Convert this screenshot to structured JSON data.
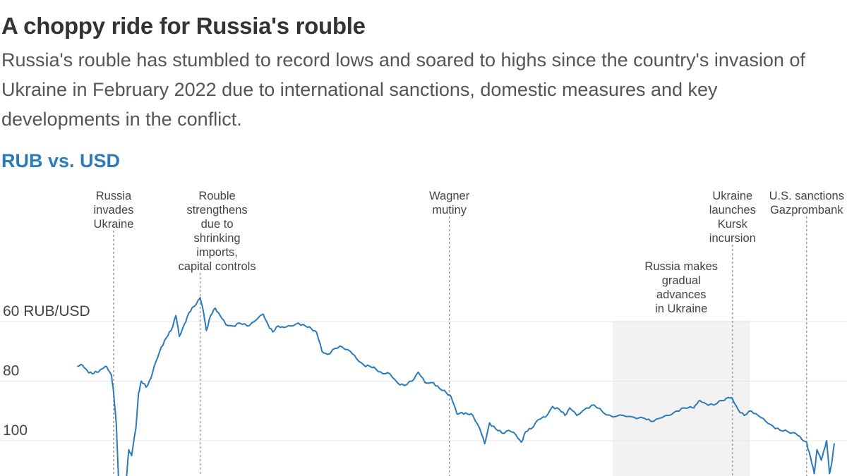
{
  "header": {
    "title": "A choppy ride for Russia's rouble",
    "subtitle": "Russia's rouble has stumbled to record lows and soared to highs since the country's invasion of Ukraine in February 2022 due to international sanctions, domestic measures and key developments in the conflict.",
    "chart_heading": "RUB vs. USD"
  },
  "colors": {
    "line": "#2b7bba",
    "heading": "#2b7bba",
    "grid": "#e6e6e6",
    "shade": "#f2f2f2",
    "event_line": "#999999"
  },
  "chart_data": {
    "type": "line",
    "title": "RUB vs. USD",
    "ylabel": "",
    "y_inverted": true,
    "ylim": [
      45,
      117
    ],
    "yticks": [
      {
        "value": 60,
        "label": "60 RUB/USD"
      },
      {
        "value": 80,
        "label": "80"
      },
      {
        "value": 100,
        "label": "100"
      }
    ],
    "xlim": [
      "2022-01-01",
      "2024-12-31"
    ],
    "grid": true,
    "series": [
      {
        "points": [
          [
            "2022-01-03",
            75.0
          ],
          [
            "2022-01-10",
            74.6
          ],
          [
            "2022-01-17",
            76.5
          ],
          [
            "2022-01-24",
            77.5
          ],
          [
            "2022-01-31",
            77.0
          ],
          [
            "2022-02-07",
            75.9
          ],
          [
            "2022-02-14",
            75.1
          ],
          [
            "2022-02-21",
            78.0
          ],
          [
            "2022-02-24",
            84.0
          ],
          [
            "2022-02-28",
            95.0
          ],
          [
            "2022-03-03",
            112.0
          ],
          [
            "2022-03-07",
            118.0
          ],
          [
            "2022-03-10",
            114.0
          ],
          [
            "2022-03-14",
            114.0
          ],
          [
            "2022-03-18",
            103.0
          ],
          [
            "2022-03-22",
            105.0
          ],
          [
            "2022-03-28",
            96.0
          ],
          [
            "2022-04-01",
            84.0
          ],
          [
            "2022-04-05",
            80.0
          ],
          [
            "2022-04-12",
            82.0
          ],
          [
            "2022-04-19",
            79.0
          ],
          [
            "2022-04-26",
            73.5
          ],
          [
            "2022-05-04",
            68.5
          ],
          [
            "2022-05-11",
            65.5
          ],
          [
            "2022-05-18",
            63.0
          ],
          [
            "2022-05-25",
            58.0
          ],
          [
            "2022-05-30",
            65.0
          ],
          [
            "2022-06-06",
            61.0
          ],
          [
            "2022-06-13",
            57.0
          ],
          [
            "2022-06-20",
            55.0
          ],
          [
            "2022-06-29",
            52.0
          ],
          [
            "2022-07-04",
            57.0
          ],
          [
            "2022-07-08",
            63.0
          ],
          [
            "2022-07-14",
            58.0
          ],
          [
            "2022-07-21",
            55.5
          ],
          [
            "2022-07-28",
            58.0
          ],
          [
            "2022-08-05",
            61.0
          ],
          [
            "2022-08-15",
            61.5
          ],
          [
            "2022-08-25",
            60.5
          ],
          [
            "2022-09-05",
            61.5
          ],
          [
            "2022-09-15",
            60.0
          ],
          [
            "2022-09-28",
            57.5
          ],
          [
            "2022-10-05",
            61.0
          ],
          [
            "2022-10-12",
            63.5
          ],
          [
            "2022-10-20",
            61.5
          ],
          [
            "2022-10-28",
            62.0
          ],
          [
            "2022-11-07",
            61.5
          ],
          [
            "2022-11-18",
            60.5
          ],
          [
            "2022-11-28",
            61.5
          ],
          [
            "2022-12-07",
            62.5
          ],
          [
            "2022-12-14",
            63.5
          ],
          [
            "2022-12-22",
            70.0
          ],
          [
            "2022-12-30",
            71.0
          ],
          [
            "2023-01-10",
            69.0
          ],
          [
            "2023-01-20",
            68.5
          ],
          [
            "2023-02-01",
            70.0
          ],
          [
            "2023-02-10",
            72.5
          ],
          [
            "2023-02-20",
            74.5
          ],
          [
            "2023-03-01",
            75.0
          ],
          [
            "2023-03-10",
            76.0
          ],
          [
            "2023-03-20",
            77.5
          ],
          [
            "2023-03-30",
            77.5
          ],
          [
            "2023-04-10",
            80.5
          ],
          [
            "2023-04-20",
            81.5
          ],
          [
            "2023-05-01",
            80.0
          ],
          [
            "2023-05-10",
            77.0
          ],
          [
            "2023-05-20",
            80.5
          ],
          [
            "2023-06-01",
            80.5
          ],
          [
            "2023-06-10",
            82.5
          ],
          [
            "2023-06-20",
            84.0
          ],
          [
            "2023-06-26",
            85.0
          ],
          [
            "2023-07-05",
            91.0
          ],
          [
            "2023-07-12",
            90.5
          ],
          [
            "2023-07-20",
            91.0
          ],
          [
            "2023-07-28",
            91.5
          ],
          [
            "2023-08-07",
            96.0
          ],
          [
            "2023-08-14",
            101.0
          ],
          [
            "2023-08-21",
            94.0
          ],
          [
            "2023-08-30",
            96.0
          ],
          [
            "2023-09-08",
            97.5
          ],
          [
            "2023-09-18",
            96.5
          ],
          [
            "2023-09-28",
            98.0
          ],
          [
            "2023-10-06",
            100.5
          ],
          [
            "2023-10-12",
            97.0
          ],
          [
            "2023-10-20",
            96.0
          ],
          [
            "2023-10-30",
            93.0
          ],
          [
            "2023-11-10",
            92.0
          ],
          [
            "2023-11-20",
            88.5
          ],
          [
            "2023-11-30",
            89.5
          ],
          [
            "2023-12-08",
            91.5
          ],
          [
            "2023-12-15",
            89.0
          ],
          [
            "2023-12-25",
            91.5
          ],
          [
            "2024-01-08",
            89.0
          ],
          [
            "2024-01-19",
            88.0
          ],
          [
            "2024-02-01",
            90.5
          ],
          [
            "2024-02-15",
            92.0
          ],
          [
            "2024-03-01",
            91.5
          ],
          [
            "2024-03-15",
            92.0
          ],
          [
            "2024-04-01",
            92.5
          ],
          [
            "2024-04-10",
            93.5
          ],
          [
            "2024-04-22",
            92.5
          ],
          [
            "2024-05-06",
            91.5
          ],
          [
            "2024-05-17",
            90.0
          ],
          [
            "2024-05-28",
            89.0
          ],
          [
            "2024-06-10",
            89.0
          ],
          [
            "2024-06-14",
            88.0
          ],
          [
            "2024-06-20",
            86.5
          ],
          [
            "2024-06-28",
            87.5
          ],
          [
            "2024-07-10",
            88.0
          ],
          [
            "2024-07-22",
            86.5
          ],
          [
            "2024-07-31",
            85.5
          ],
          [
            "2024-08-06",
            86.0
          ],
          [
            "2024-08-14",
            89.5
          ],
          [
            "2024-08-23",
            91.5
          ],
          [
            "2024-09-02",
            90.0
          ],
          [
            "2024-09-12",
            91.5
          ],
          [
            "2024-09-23",
            93.5
          ],
          [
            "2024-10-03",
            95.0
          ],
          [
            "2024-10-14",
            96.5
          ],
          [
            "2024-10-25",
            97.0
          ],
          [
            "2024-11-05",
            97.5
          ],
          [
            "2024-11-14",
            99.5
          ],
          [
            "2024-11-21",
            100.5
          ],
          [
            "2024-11-27",
            106.0
          ],
          [
            "2024-12-02",
            111.0
          ],
          [
            "2024-12-06",
            103.0
          ],
          [
            "2024-12-12",
            106.5
          ],
          [
            "2024-12-17",
            102.5
          ],
          [
            "2024-12-20",
            100.0
          ],
          [
            "2024-12-24",
            111.0
          ],
          [
            "2024-12-27",
            108.0
          ],
          [
            "2024-12-31",
            101.0
          ]
        ]
      }
    ],
    "events": [
      {
        "date": "2022-02-24",
        "lines": [
          "Russia",
          "invades",
          "Ukraine"
        ]
      },
      {
        "date": "2022-06-29",
        "lines": [
          "Rouble",
          "strengthens",
          "due to",
          "shrinking",
          "imports,",
          "capital controls"
        ]
      },
      {
        "date": "2023-06-24",
        "lines": [
          "Wagner",
          "mutiny"
        ]
      },
      {
        "date": "2024-08-06",
        "lines": [
          "Ukraine",
          "launches",
          "Kursk",
          "incursion"
        ]
      },
      {
        "date": "2024-11-21",
        "lines": [
          "U.S. sanctions",
          "Gazprombank"
        ]
      }
    ],
    "shaded_ranges": [
      {
        "start": "2024-02-15",
        "end": "2024-08-31",
        "lines": [
          "Russia makes",
          "gradual",
          "advances",
          "in Ukraine"
        ]
      }
    ]
  }
}
